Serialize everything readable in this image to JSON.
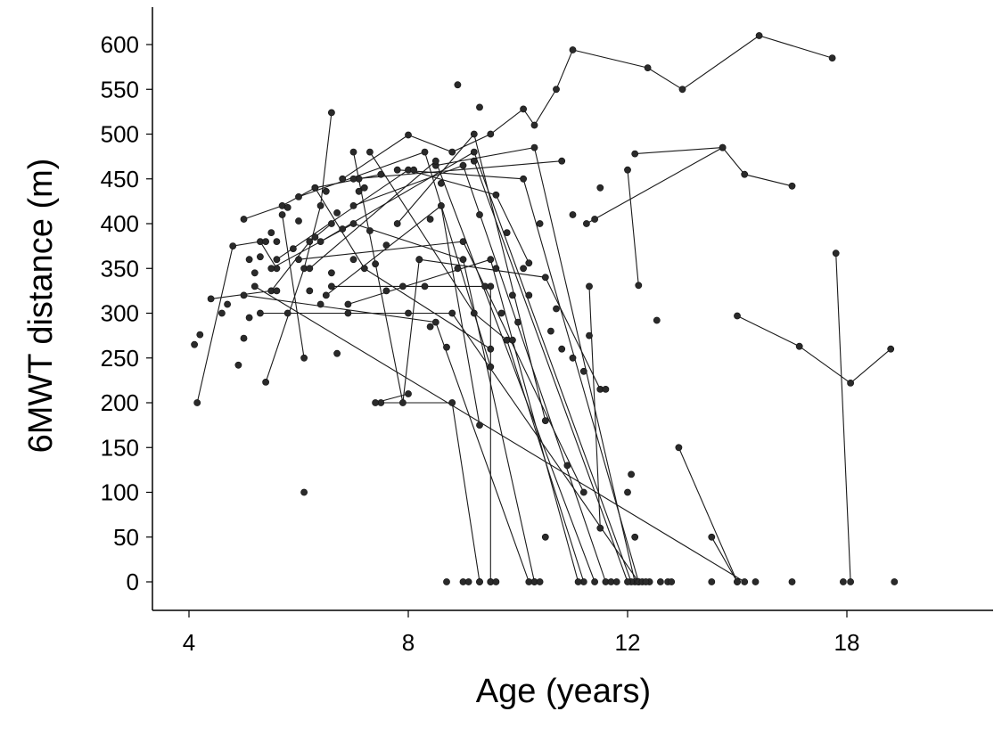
{
  "chart_data": {
    "type": "scatter",
    "xlabel": "Age (years)",
    "ylabel": "6MWT distance (m)",
    "x_ticks": [
      "4",
      "8",
      "12",
      "18"
    ],
    "y_ticks": [
      "0",
      "50",
      "100",
      "150",
      "200",
      "250",
      "300",
      "350",
      "400",
      "450",
      "500",
      "550",
      "600"
    ],
    "ylim": [
      -15,
      640
    ],
    "grid": false,
    "legend": "none",
    "colors": {
      "marker": "#2a2a2a",
      "line": "#1a1a1a"
    },
    "trajectories": [
      [
        [
          4.15,
          200
        ],
        [
          4.8,
          375
        ],
        [
          5.3,
          380
        ],
        [
          5.6,
          350
        ]
      ],
      [
        [
          4.4,
          316
        ],
        [
          5.5,
          325
        ],
        [
          6.2,
          380
        ],
        [
          6.6,
          400
        ]
      ],
      [
        [
          5.0,
          405
        ],
        [
          5.7,
          420
        ],
        [
          6.3,
          440
        ],
        [
          7.1,
          450
        ],
        [
          7.5,
          455
        ]
      ],
      [
        [
          5.4,
          223
        ],
        [
          6.1,
          350
        ],
        [
          6.4,
          420
        ],
        [
          6.6,
          524
        ]
      ],
      [
        [
          6.8,
          450
        ],
        [
          8.0,
          499
        ],
        [
          8.8,
          480
        ],
        [
          9.5,
          500
        ],
        [
          10.1,
          528
        ],
        [
          10.3,
          510
        ],
        [
          10.7,
          550
        ],
        [
          11.0,
          594
        ],
        [
          12.55,
          574
        ],
        [
          13.5,
          550
        ],
        [
          15.6,
          610
        ],
        [
          17.6,
          585
        ]
      ],
      [
        [
          11.25,
          400
        ],
        [
          14.6,
          485
        ],
        [
          15.2,
          455
        ],
        [
          16.5,
          442
        ]
      ],
      [
        [
          15.0,
          297
        ],
        [
          16.7,
          263
        ],
        [
          18.1,
          222
        ],
        [
          19.2,
          260
        ]
      ],
      [
        [
          17.7,
          367
        ],
        [
          18.1,
          0
        ]
      ],
      [
        [
          12.2,
          478
        ],
        [
          14.6,
          485
        ]
      ],
      [
        [
          14.3,
          50
        ],
        [
          15.0,
          0
        ]
      ],
      [
        [
          13.4,
          150
        ],
        [
          15.0,
          0
        ]
      ],
      [
        [
          12.0,
          460
        ],
        [
          12.3,
          331
        ]
      ],
      [
        [
          7.0,
          480
        ],
        [
          7.9,
          200
        ],
        [
          8.2,
          360
        ]
      ],
      [
        [
          5.6,
          360
        ],
        [
          8.0,
          460
        ],
        [
          9.6,
          432
        ],
        [
          10.2,
          356
        ]
      ],
      [
        [
          7.3,
          480
        ],
        [
          9.2,
          300
        ],
        [
          9.8,
          270
        ],
        [
          11.2,
          0
        ]
      ],
      [
        [
          6.0,
          430
        ],
        [
          8.3,
          480
        ],
        [
          9.5,
          240
        ]
      ],
      [
        [
          5.5,
          350
        ],
        [
          7.0,
          400
        ],
        [
          9.0,
          360
        ],
        [
          10.3,
          0
        ]
      ],
      [
        [
          6.5,
          320
        ],
        [
          8.6,
          420
        ],
        [
          9.3,
          175
        ]
      ],
      [
        [
          7.0,
          420
        ],
        [
          9.0,
          465
        ],
        [
          11.6,
          0
        ]
      ],
      [
        [
          7.8,
          460
        ],
        [
          10.1,
          450
        ],
        [
          12.3,
          0
        ]
      ],
      [
        [
          8.5,
          465
        ],
        [
          10.3,
          485
        ],
        [
          12.2,
          0
        ]
      ],
      [
        [
          6.0,
          360
        ],
        [
          9.0,
          380
        ],
        [
          11.2,
          100
        ]
      ],
      [
        [
          5.3,
          300
        ],
        [
          8.8,
          300
        ],
        [
          12.3,
          0
        ]
      ],
      [
        [
          6.6,
          330
        ],
        [
          9.5,
          330
        ],
        [
          9.5,
          0
        ]
      ],
      [
        [
          5.0,
          320
        ],
        [
          8.5,
          290
        ],
        [
          10.2,
          0
        ]
      ],
      [
        [
          7.5,
          200
        ],
        [
          8.8,
          200
        ],
        [
          9.3,
          0
        ]
      ],
      [
        [
          6.2,
          350
        ],
        [
          8.5,
          470
        ],
        [
          11.4,
          0
        ]
      ],
      [
        [
          6.4,
          380
        ],
        [
          9.2,
          480
        ],
        [
          12.1,
          0
        ]
      ],
      [
        [
          6.9,
          310
        ],
        [
          9.5,
          360
        ],
        [
          11.1,
          0
        ]
      ],
      [
        [
          5.7,
          410
        ],
        [
          6.1,
          250
        ]
      ],
      [
        [
          7.0,
          450
        ],
        [
          10.8,
          470
        ]
      ],
      [
        [
          9.2,
          470
        ],
        [
          12.0,
          0
        ]
      ],
      [
        [
          11.3,
          330
        ],
        [
          11.5,
          60
        ]
      ],
      [
        [
          5.2,
          330
        ],
        [
          15.2,
          0
        ]
      ],
      [
        [
          7.4,
          200
        ],
        [
          8.0,
          210
        ]
      ],
      [
        [
          7.8,
          400
        ],
        [
          9.2,
          500
        ],
        [
          10.5,
          180
        ]
      ],
      [
        [
          6.3,
          440
        ],
        [
          7.2,
          350
        ],
        [
          9.5,
          260
        ]
      ],
      [
        [
          8.2,
          360
        ],
        [
          10.5,
          340
        ],
        [
          11.5,
          215
        ]
      ]
    ],
    "isolated_points": [
      [
        4.1,
        265
      ],
      [
        4.2,
        276
      ],
      [
        4.6,
        300
      ],
      [
        4.7,
        310
      ],
      [
        4.9,
        242
      ],
      [
        5.0,
        272
      ],
      [
        5.1,
        295
      ],
      [
        5.2,
        345
      ],
      [
        5.3,
        363
      ],
      [
        5.5,
        390
      ],
      [
        5.8,
        300
      ],
      [
        6.1,
        100
      ],
      [
        6.4,
        310
      ],
      [
        6.7,
        255
      ],
      [
        6.9,
        300
      ],
      [
        7.6,
        325
      ],
      [
        8.4,
        285
      ],
      [
        8.7,
        262
      ],
      [
        8.9,
        555
      ],
      [
        9.3,
        530
      ],
      [
        9.6,
        350
      ],
      [
        9.9,
        270
      ],
      [
        10.2,
        320
      ],
      [
        10.5,
        50
      ],
      [
        10.9,
        130
      ],
      [
        11.0,
        250
      ],
      [
        11.2,
        235
      ],
      [
        11.4,
        405
      ],
      [
        12.1,
        120
      ],
      [
        12.6,
        0
      ],
      [
        12.8,
        292
      ],
      [
        12.9,
        0
      ],
      [
        13.1,
        0
      ],
      [
        13.2,
        0
      ],
      [
        14.3,
        0
      ],
      [
        15.5,
        0
      ],
      [
        16.5,
        0
      ],
      [
        17.9,
        0
      ],
      [
        19.3,
        0
      ],
      [
        8.7,
        0
      ],
      [
        9.0,
        0
      ],
      [
        9.1,
        0
      ],
      [
        9.3,
        0
      ],
      [
        9.5,
        0
      ],
      [
        9.6,
        0
      ],
      [
        10.3,
        0
      ],
      [
        10.4,
        0
      ],
      [
        11.7,
        0
      ],
      [
        11.8,
        0
      ],
      [
        12.4,
        0
      ],
      [
        12.5,
        0
      ],
      [
        11.6,
        215
      ],
      [
        11.3,
        275
      ],
      [
        10.7,
        305
      ],
      [
        10.4,
        400
      ],
      [
        9.9,
        320
      ],
      [
        9.3,
        410
      ],
      [
        8.6,
        445
      ],
      [
        8.1,
        460
      ],
      [
        7.3,
        392
      ],
      [
        7.0,
        360
      ],
      [
        6.6,
        345
      ],
      [
        6.0,
        403
      ],
      [
        5.9,
        372
      ],
      [
        5.6,
        325
      ],
      [
        5.4,
        380
      ],
      [
        5.1,
        360
      ],
      [
        7.6,
        376
      ],
      [
        8.3,
        330
      ],
      [
        8.0,
        300
      ],
      [
        6.3,
        385
      ],
      [
        6.7,
        412
      ],
      [
        7.2,
        440
      ],
      [
        9.8,
        390
      ],
      [
        10.6,
        280
      ],
      [
        11.0,
        410
      ],
      [
        11.5,
        440
      ],
      [
        10.0,
        290
      ],
      [
        7.9,
        330
      ],
      [
        6.8,
        394
      ],
      [
        7.1,
        436
      ],
      [
        5.8,
        418
      ],
      [
        6.5,
        436
      ],
      [
        8.4,
        405
      ],
      [
        8.9,
        350
      ],
      [
        9.4,
        330
      ],
      [
        10.1,
        350
      ],
      [
        6.2,
        325
      ],
      [
        5.6,
        380
      ],
      [
        7.4,
        355
      ],
      [
        9.7,
        300
      ],
      [
        10.8,
        260
      ],
      [
        12.0,
        100
      ],
      [
        12.2,
        50
      ]
    ]
  }
}
